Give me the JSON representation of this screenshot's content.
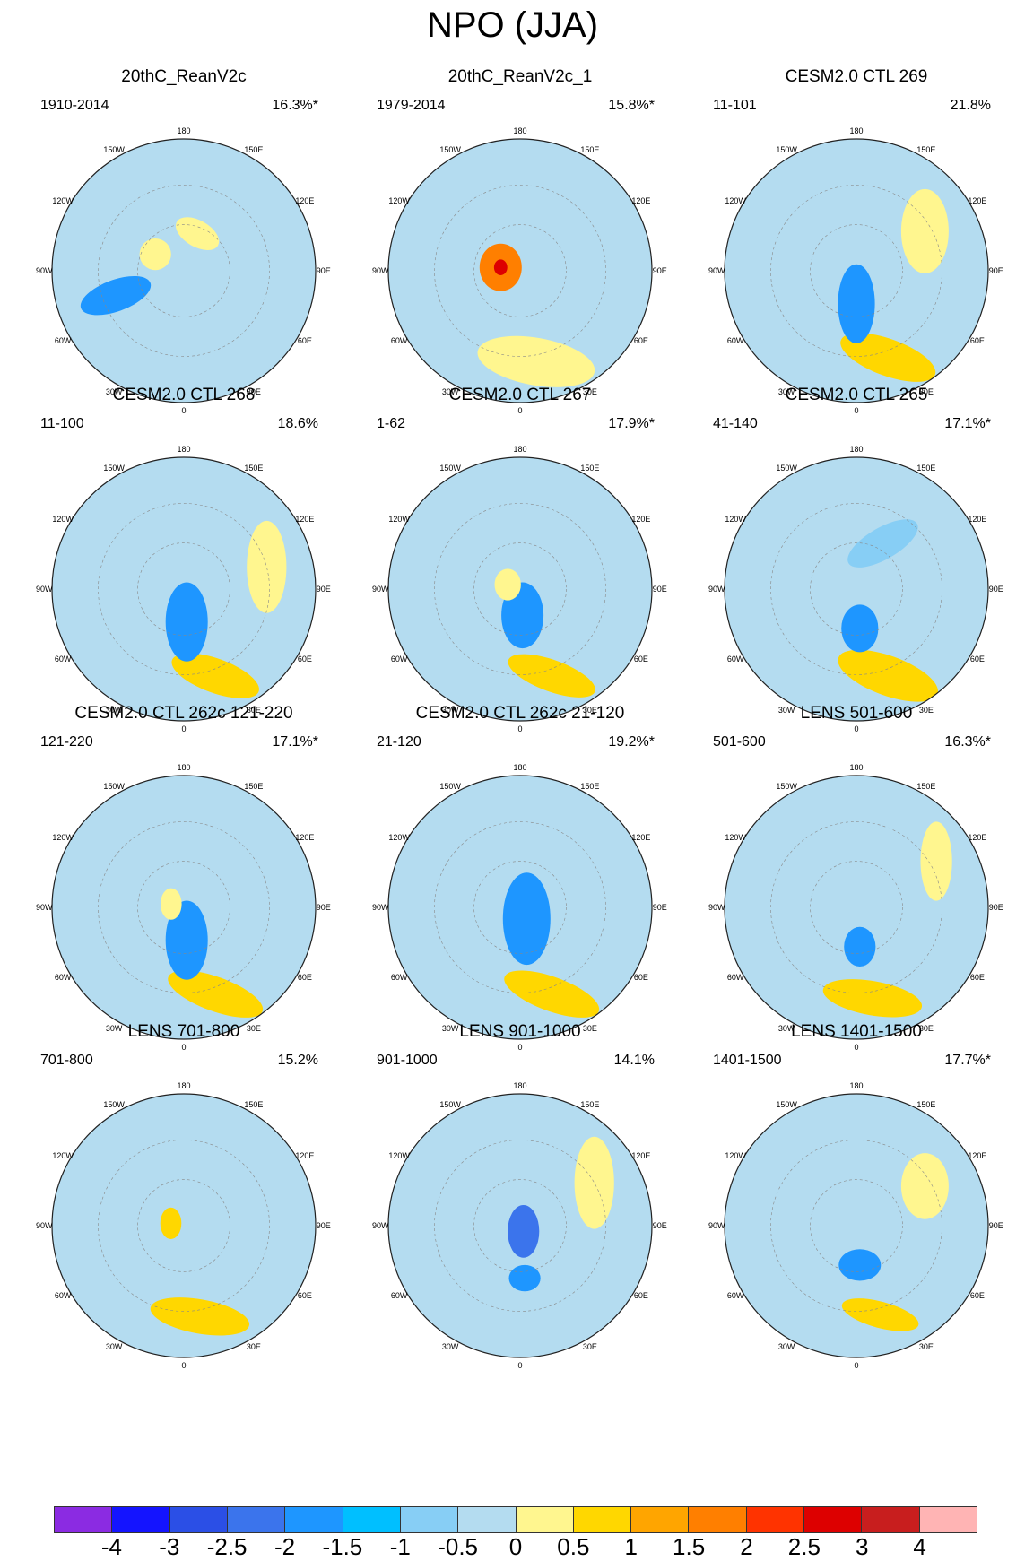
{
  "title": "NPO (JJA)",
  "longitude_labels": [
    "180",
    "150E",
    "120E",
    "90E",
    "60E",
    "30E",
    "0",
    "30W",
    "60W",
    "90W",
    "120W",
    "150W"
  ],
  "panels": [
    {
      "title": "20thC_ReanV2c",
      "period": "1910-2014",
      "variance": "16.3%*",
      "blobs": [
        {
          "lon": -110,
          "r": 0.55,
          "lvl": -1.5,
          "rx": 0.28,
          "ry": 0.12,
          "rot": -20
        },
        {
          "lon": 20,
          "r": 0.3,
          "lvl": 0.5,
          "rx": 0.18,
          "ry": 0.1,
          "rot": 30
        },
        {
          "lon": -60,
          "r": 0.25,
          "lvl": 0.5,
          "rx": 0.12,
          "ry": 0.12,
          "rot": 0
        }
      ]
    },
    {
      "title": "20thC_ReanV2c_1",
      "period": "1979-2014",
      "variance": "15.8%*",
      "blobs": [
        {
          "lon": 170,
          "r": 0.7,
          "lvl": 0.5,
          "rx": 0.45,
          "ry": 0.18,
          "rot": 10
        },
        {
          "lon": -80,
          "r": 0.15,
          "lvl": 2,
          "rx": 0.16,
          "ry": 0.18,
          "rot": 0
        },
        {
          "lon": -80,
          "r": 0.15,
          "lvl": 3,
          "rx": 0.05,
          "ry": 0.06,
          "rot": 0
        }
      ]
    },
    {
      "title": "CESM2.0 CTL 269",
      "period": "11-101",
      "variance": "21.8%",
      "blobs": [
        {
          "lon": 160,
          "r": 0.7,
          "lvl": 1,
          "rx": 0.38,
          "ry": 0.14,
          "rot": 20
        },
        {
          "lon": 180,
          "r": 0.25,
          "lvl": -1.5,
          "rx": 0.14,
          "ry": 0.3,
          "rot": 0
        },
        {
          "lon": 60,
          "r": 0.6,
          "lvl": 0.5,
          "rx": 0.18,
          "ry": 0.32,
          "rot": 0
        }
      ]
    },
    {
      "title": "CESM2.0 CTL 268",
      "period": "11-100",
      "variance": "18.6%",
      "blobs": [
        {
          "lon": 160,
          "r": 0.7,
          "lvl": 1,
          "rx": 0.35,
          "ry": 0.13,
          "rot": 20
        },
        {
          "lon": 175,
          "r": 0.25,
          "lvl": -1.5,
          "rx": 0.16,
          "ry": 0.3,
          "rot": 0
        },
        {
          "lon": 75,
          "r": 0.65,
          "lvl": 0.5,
          "rx": 0.15,
          "ry": 0.35,
          "rot": 0
        }
      ]
    },
    {
      "title": "CESM2.0 CTL 267",
      "period": "1-62",
      "variance": "17.9%*",
      "blobs": [
        {
          "lon": 160,
          "r": 0.7,
          "lvl": 1,
          "rx": 0.35,
          "ry": 0.12,
          "rot": 20
        },
        {
          "lon": 175,
          "r": 0.2,
          "lvl": -1.5,
          "rx": 0.16,
          "ry": 0.25,
          "rot": 0
        },
        {
          "lon": -70,
          "r": 0.1,
          "lvl": 0.5,
          "rx": 0.1,
          "ry": 0.12,
          "rot": 0
        }
      ]
    },
    {
      "title": "CESM2.0 CTL 265",
      "period": "41-140",
      "variance": "17.1%*",
      "blobs": [
        {
          "lon": 160,
          "r": 0.7,
          "lvl": 1,
          "rx": 0.4,
          "ry": 0.15,
          "rot": 20
        },
        {
          "lon": 175,
          "r": 0.3,
          "lvl": -1.5,
          "rx": 0.14,
          "ry": 0.18,
          "rot": 0
        },
        {
          "lon": 30,
          "r": 0.4,
          "lvl": -1,
          "rx": 0.3,
          "ry": 0.12,
          "rot": -30
        }
      ]
    },
    {
      "title": "CESM2.0 CTL 262c 121-220",
      "period": "121-220",
      "variance": "17.1%*",
      "blobs": [
        {
          "lon": 160,
          "r": 0.7,
          "lvl": 1,
          "rx": 0.38,
          "ry": 0.13,
          "rot": 20
        },
        {
          "lon": 175,
          "r": 0.25,
          "lvl": -1.5,
          "rx": 0.16,
          "ry": 0.3,
          "rot": 0
        },
        {
          "lon": -75,
          "r": 0.1,
          "lvl": 0.5,
          "rx": 0.08,
          "ry": 0.12,
          "rot": 0
        }
      ]
    },
    {
      "title": "CESM2.0 CTL 262c 21-120",
      "period": "21-120",
      "variance": "19.2%*",
      "blobs": [
        {
          "lon": 160,
          "r": 0.7,
          "lvl": 1,
          "rx": 0.38,
          "ry": 0.13,
          "rot": 20
        },
        {
          "lon": 150,
          "r": 0.1,
          "lvl": -1.5,
          "rx": 0.18,
          "ry": 0.35,
          "rot": 0
        }
      ]
    },
    {
      "title": "LENS 501-600",
      "period": "501-600",
      "variance": "16.3%*",
      "blobs": [
        {
          "lon": 170,
          "r": 0.7,
          "lvl": 1,
          "rx": 0.38,
          "ry": 0.13,
          "rot": 10
        },
        {
          "lon": 175,
          "r": 0.3,
          "lvl": -1.5,
          "rx": 0.12,
          "ry": 0.15,
          "rot": 0
        },
        {
          "lon": 60,
          "r": 0.7,
          "lvl": 0.5,
          "rx": 0.12,
          "ry": 0.3,
          "rot": 0
        }
      ]
    },
    {
      "title": "LENS 701-800",
      "period": "701-800",
      "variance": "15.2%",
      "blobs": [
        {
          "lon": 170,
          "r": 0.7,
          "lvl": 1,
          "rx": 0.38,
          "ry": 0.13,
          "rot": 10
        },
        {
          "lon": -80,
          "r": 0.1,
          "lvl": 1,
          "rx": 0.08,
          "ry": 0.12,
          "rot": 0
        }
      ]
    },
    {
      "title": "LENS 901-1000",
      "period": "901-1000",
      "variance": "14.1%",
      "blobs": [
        {
          "lon": 175,
          "r": 0.4,
          "lvl": -1.5,
          "rx": 0.12,
          "ry": 0.1,
          "rot": 0
        },
        {
          "lon": 150,
          "r": 0.05,
          "lvl": -2,
          "rx": 0.12,
          "ry": 0.2,
          "rot": 0
        },
        {
          "lon": 60,
          "r": 0.65,
          "lvl": 0.5,
          "rx": 0.15,
          "ry": 0.35,
          "rot": 0
        }
      ]
    },
    {
      "title": "LENS 1401-1500",
      "period": "1401-1500",
      "variance": "17.7%*",
      "blobs": [
        {
          "lon": 165,
          "r": 0.7,
          "lvl": 1,
          "rx": 0.3,
          "ry": 0.1,
          "rot": 15
        },
        {
          "lon": 175,
          "r": 0.3,
          "lvl": -1.5,
          "rx": 0.16,
          "ry": 0.12,
          "rot": 0
        },
        {
          "lon": 60,
          "r": 0.6,
          "lvl": 0.5,
          "rx": 0.18,
          "ry": 0.25,
          "rot": 0
        }
      ]
    }
  ],
  "colorbar": {
    "labels": [
      "-4",
      "-3",
      "-2.5",
      "-2",
      "-1.5",
      "-1",
      "-0.5",
      "0",
      "0.5",
      "1",
      "1.5",
      "2",
      "2.5",
      "3",
      "4"
    ],
    "colors": [
      "#8b2be2",
      "#1414ff",
      "#2b4fe6",
      "#3b74ec",
      "#1e96ff",
      "#00bfff",
      "#87cef5",
      "#b4dcf0",
      "#fff68f",
      "#ffd700",
      "#ffa500",
      "#ff7f00",
      "#ff3300",
      "#dd0000",
      "#c81e1e",
      "#ffb4b4"
    ]
  },
  "level_colors": {
    "-2": "#3b74ec",
    "-1.5": "#1e96ff",
    "-1": "#87cef5",
    "-0.5": "#b4dcf0",
    "0.5": "#fff68f",
    "1": "#ffd700",
    "2": "#ff7f00",
    "3": "#dd0000"
  }
}
